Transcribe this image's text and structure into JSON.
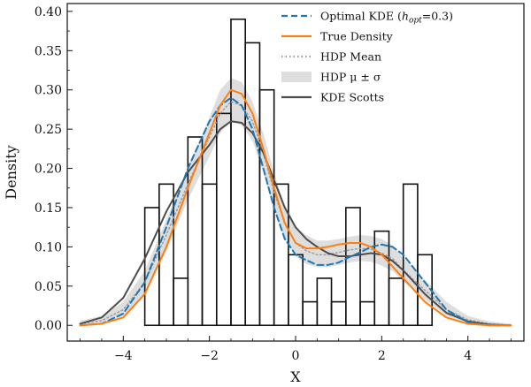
{
  "chart_data": {
    "type": "histogram+line",
    "xlabel": "X",
    "ylabel": "Density",
    "xlim": [
      -5.3,
      5.3
    ],
    "ylim": [
      -0.02,
      0.41
    ],
    "xticks": [
      -4,
      -2,
      0,
      2,
      4
    ],
    "yticks": [
      0.0,
      0.05,
      0.1,
      0.15,
      0.2,
      0.25,
      0.3,
      0.35,
      0.4
    ],
    "ytick_labels": [
      "0.00",
      "0.05",
      "0.10",
      "0.15",
      "0.20",
      "0.25",
      "0.30",
      "0.35",
      "0.40"
    ],
    "grid": false,
    "legend_position": "top-right",
    "legend": [
      {
        "id": "optimal",
        "label_prefix": "Optimal KDE (",
        "label_math": "h",
        "label_sub": "opt",
        "label_suffix": "=0.3)",
        "style": "dashed",
        "color": "#1f77b4"
      },
      {
        "id": "true",
        "label": "True Density",
        "style": "solid",
        "color": "#ff7f0e"
      },
      {
        "id": "hdp_mean",
        "label": "HDP Mean",
        "style": "dotted",
        "color": "#9e9e9e"
      },
      {
        "id": "hdp_band",
        "label": "HDP μ ± σ",
        "style": "band",
        "color": "#d3d3d3"
      },
      {
        "id": "scotts",
        "label": "KDE Scotts",
        "style": "solid",
        "color": "#4d4d4d"
      }
    ],
    "histogram": {
      "edges": [
        -3.5,
        -3.167,
        -2.833,
        -2.5,
        -2.167,
        -1.833,
        -1.5,
        -1.167,
        -0.833,
        -0.5,
        -0.167,
        0.167,
        0.5,
        0.833,
        1.167,
        1.5,
        1.833,
        2.167,
        2.5,
        2.833,
        3.167
      ],
      "values": [
        0.15,
        0.18,
        0.06,
        0.24,
        0.18,
        0.27,
        0.39,
        0.36,
        0.3,
        0.18,
        0.09,
        0.03,
        0.06,
        0.03,
        0.15,
        0.03,
        0.12,
        0.06,
        0.18,
        0.09
      ]
    },
    "x": [
      -5.0,
      -4.5,
      -4.0,
      -3.5,
      -3.0,
      -2.5,
      -2.0,
      -1.75,
      -1.5,
      -1.25,
      -1.0,
      -0.75,
      -0.5,
      -0.25,
      0.0,
      0.25,
      0.5,
      0.75,
      1.0,
      1.25,
      1.5,
      1.75,
      2.0,
      2.25,
      2.5,
      3.0,
      3.5,
      4.0,
      4.5,
      5.0
    ],
    "series": [
      {
        "name": "Optimal KDE (hopt=0.3)",
        "color": "#1f77b4",
        "style": "dashed",
        "values": [
          0.0,
          0.002,
          0.015,
          0.055,
          0.125,
          0.2,
          0.26,
          0.28,
          0.29,
          0.28,
          0.25,
          0.2,
          0.15,
          0.11,
          0.09,
          0.083,
          0.077,
          0.077,
          0.08,
          0.087,
          0.093,
          0.1,
          0.103,
          0.1,
          0.09,
          0.055,
          0.02,
          0.004,
          0.0,
          0.0
        ]
      },
      {
        "name": "True Density",
        "color": "#ff7f0e",
        "style": "solid",
        "values": [
          0.0,
          0.002,
          0.01,
          0.04,
          0.1,
          0.175,
          0.245,
          0.28,
          0.3,
          0.295,
          0.27,
          0.225,
          0.175,
          0.13,
          0.105,
          0.098,
          0.098,
          0.1,
          0.103,
          0.105,
          0.105,
          0.1,
          0.09,
          0.075,
          0.06,
          0.03,
          0.01,
          0.002,
          0.0,
          0.0
        ]
      },
      {
        "name": "HDP Mean",
        "color": "#9e9e9e",
        "style": "dotted",
        "values": [
          0.002,
          0.006,
          0.02,
          0.055,
          0.115,
          0.18,
          0.24,
          0.27,
          0.285,
          0.28,
          0.26,
          0.22,
          0.17,
          0.13,
          0.105,
          0.095,
          0.09,
          0.09,
          0.093,
          0.096,
          0.098,
          0.097,
          0.092,
          0.085,
          0.07,
          0.045,
          0.02,
          0.007,
          0.002,
          0.0
        ]
      },
      {
        "name": "HDP μ ± σ (lower)",
        "color": "#d3d3d3",
        "style": "band-lower",
        "values": [
          0.0,
          0.002,
          0.012,
          0.04,
          0.095,
          0.16,
          0.215,
          0.245,
          0.26,
          0.255,
          0.235,
          0.195,
          0.148,
          0.112,
          0.088,
          0.078,
          0.074,
          0.074,
          0.077,
          0.08,
          0.082,
          0.081,
          0.076,
          0.069,
          0.056,
          0.033,
          0.012,
          0.003,
          0.0,
          0.0
        ]
      },
      {
        "name": "HDP μ ± σ (upper)",
        "color": "#d3d3d3",
        "style": "band-upper",
        "values": [
          0.006,
          0.012,
          0.03,
          0.07,
          0.135,
          0.2,
          0.265,
          0.3,
          0.315,
          0.31,
          0.285,
          0.245,
          0.195,
          0.15,
          0.125,
          0.115,
          0.108,
          0.108,
          0.11,
          0.113,
          0.115,
          0.114,
          0.11,
          0.102,
          0.086,
          0.058,
          0.03,
          0.012,
          0.005,
          0.002
        ]
      },
      {
        "name": "KDE Scotts",
        "color": "#4d4d4d",
        "style": "solid",
        "values": [
          0.002,
          0.01,
          0.035,
          0.085,
          0.145,
          0.195,
          0.23,
          0.25,
          0.26,
          0.258,
          0.245,
          0.22,
          0.185,
          0.15,
          0.125,
          0.11,
          0.1,
          0.092,
          0.088,
          0.088,
          0.09,
          0.092,
          0.09,
          0.082,
          0.07,
          0.04,
          0.016,
          0.005,
          0.001,
          0.0
        ]
      }
    ]
  }
}
